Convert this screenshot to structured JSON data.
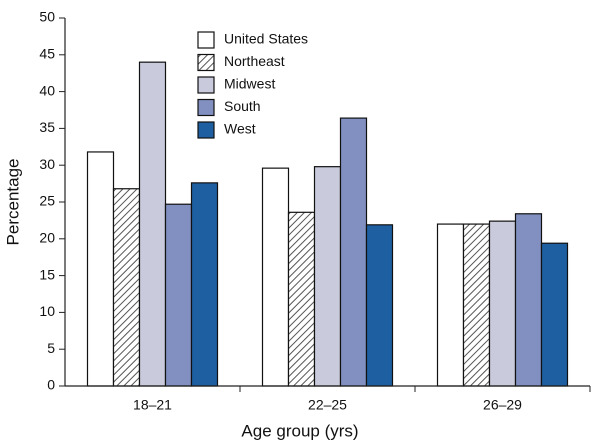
{
  "chart_data": {
    "type": "bar",
    "xlabel": "Age group (yrs)",
    "ylabel": "Percentage",
    "categories": [
      "18–21",
      "22–25",
      "26–29"
    ],
    "series": [
      {
        "name": "United States",
        "color": "#ffffff",
        "values": [
          31.8,
          29.6,
          22.0
        ]
      },
      {
        "name": "Northeast",
        "color": "#ffffff",
        "pattern": "hatch",
        "values": [
          26.8,
          23.6,
          22.0
        ]
      },
      {
        "name": "Midwest",
        "color": "#c9cbdc",
        "values": [
          44.0,
          29.8,
          22.4
        ]
      },
      {
        "name": "South",
        "color": "#8190c0",
        "values": [
          24.7,
          36.4,
          23.4
        ]
      },
      {
        "name": "West",
        "color": "#1d5fa1",
        "values": [
          27.6,
          21.9,
          19.4
        ]
      }
    ],
    "ylim": [
      0,
      50
    ],
    "yticks": [
      0,
      5,
      10,
      15,
      20,
      25,
      30,
      35,
      40,
      45,
      50
    ],
    "legend": "top-center"
  }
}
